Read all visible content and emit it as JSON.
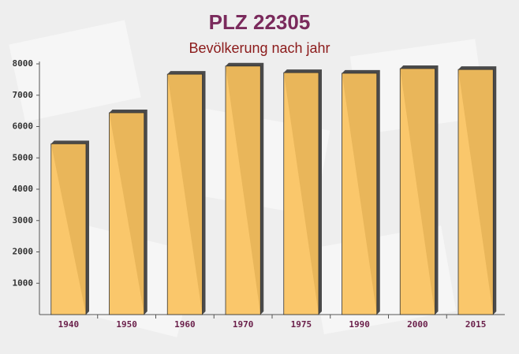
{
  "chart_data": {
    "type": "bar",
    "title": "PLZ 22305",
    "subtitle": "Bevölkerung nach jahr",
    "categories": [
      "1940",
      "1950",
      "1960",
      "1970",
      "1975",
      "1990",
      "2000",
      "2015"
    ],
    "values": [
      5450,
      6440,
      7670,
      7930,
      7720,
      7700,
      7850,
      7820
    ],
    "color": "#fbc25c",
    "ylim": [
      0,
      8000
    ],
    "yticks": [
      1000,
      2000,
      3000,
      4000,
      5000,
      6000,
      7000,
      8000
    ],
    "grid": false
  }
}
